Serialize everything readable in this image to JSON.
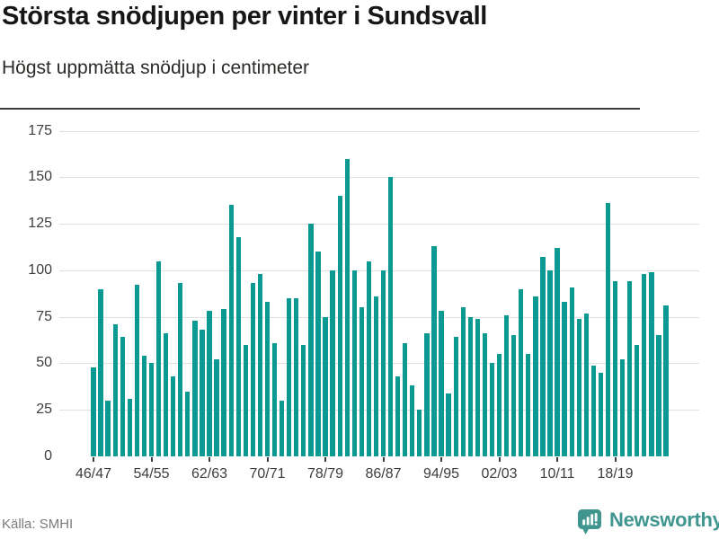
{
  "header": {
    "title": "Största snödjupen per vinter i Sundsvall",
    "subtitle": "Högst uppmätta snödjup i centimeter"
  },
  "footer": {
    "source_label": "Källa: SMHI",
    "brand": "Newsworthy",
    "brand_icon": "newsworthy-speech-bubble-bar-chart-icon"
  },
  "colors": {
    "bar": "#0a9a92",
    "axis": "#3c3c3c",
    "grid": "#e0e0e0",
    "tick_label": "#3d3d3d",
    "brand_teal": "#40968f",
    "title_text": "#161614",
    "source_text": "#7b7b7b"
  },
  "chart_data": {
    "type": "bar",
    "title": "Största snödjupen per vinter i Sundsvall",
    "subtitle": "Högst uppmätta snödjup i centimeter",
    "source": "SMHI",
    "xlabel": "",
    "ylabel": "",
    "unit": "cm",
    "ylim": [
      0,
      175
    ],
    "yticks": [
      0,
      25,
      50,
      75,
      100,
      125,
      150,
      175
    ],
    "grid": "horizontal",
    "legend": "none",
    "xtick_every": 8,
    "xtick_labels": [
      "46/47",
      "54/55",
      "62/63",
      "70/71",
      "78/79",
      "86/87",
      "94/95",
      "02/03",
      "10/11",
      "18/19"
    ],
    "categories": [
      "46/47",
      "47/48",
      "48/49",
      "49/50",
      "50/51",
      "51/52",
      "52/53",
      "53/54",
      "54/55",
      "55/56",
      "56/57",
      "57/58",
      "58/59",
      "59/60",
      "60/61",
      "61/62",
      "62/63",
      "63/64",
      "64/65",
      "65/66",
      "66/67",
      "67/68",
      "68/69",
      "69/70",
      "70/71",
      "71/72",
      "72/73",
      "73/74",
      "74/75",
      "75/76",
      "76/77",
      "77/78",
      "78/79",
      "79/80",
      "80/81",
      "81/82",
      "82/83",
      "83/84",
      "84/85",
      "85/86",
      "86/87",
      "87/88",
      "88/89",
      "89/90",
      "90/91",
      "91/92",
      "92/93",
      "93/94",
      "94/95",
      "95/96",
      "96/97",
      "97/98",
      "98/99",
      "99/00",
      "00/01",
      "01/02",
      "02/03",
      "03/04",
      "04/05",
      "05/06",
      "06/07",
      "07/08",
      "08/09",
      "09/10",
      "10/11",
      "11/12",
      "12/13",
      "13/14",
      "14/15",
      "15/16",
      "16/17",
      "17/18",
      "18/19",
      "19/20",
      "20/21",
      "21/22",
      "22/23",
      "23/24",
      "24/25",
      "25/26"
    ],
    "values": [
      48,
      90,
      30,
      71,
      64,
      31,
      92,
      54,
      50,
      105,
      66,
      43,
      93,
      35,
      73,
      68,
      78,
      52,
      79,
      135,
      118,
      60,
      93,
      98,
      83,
      61,
      30,
      85,
      85,
      60,
      125,
      110,
      75,
      100,
      140,
      160,
      100,
      80,
      105,
      86,
      100,
      150,
      43,
      61,
      38,
      25,
      66,
      113,
      78,
      34,
      64,
      80,
      75,
      74,
      66,
      50,
      55,
      76,
      65,
      90,
      55,
      86,
      107,
      100,
      112,
      83,
      91,
      74,
      77,
      49,
      45,
      136,
      94,
      52,
      94,
      60,
      98,
      99,
      65,
      81
    ]
  }
}
